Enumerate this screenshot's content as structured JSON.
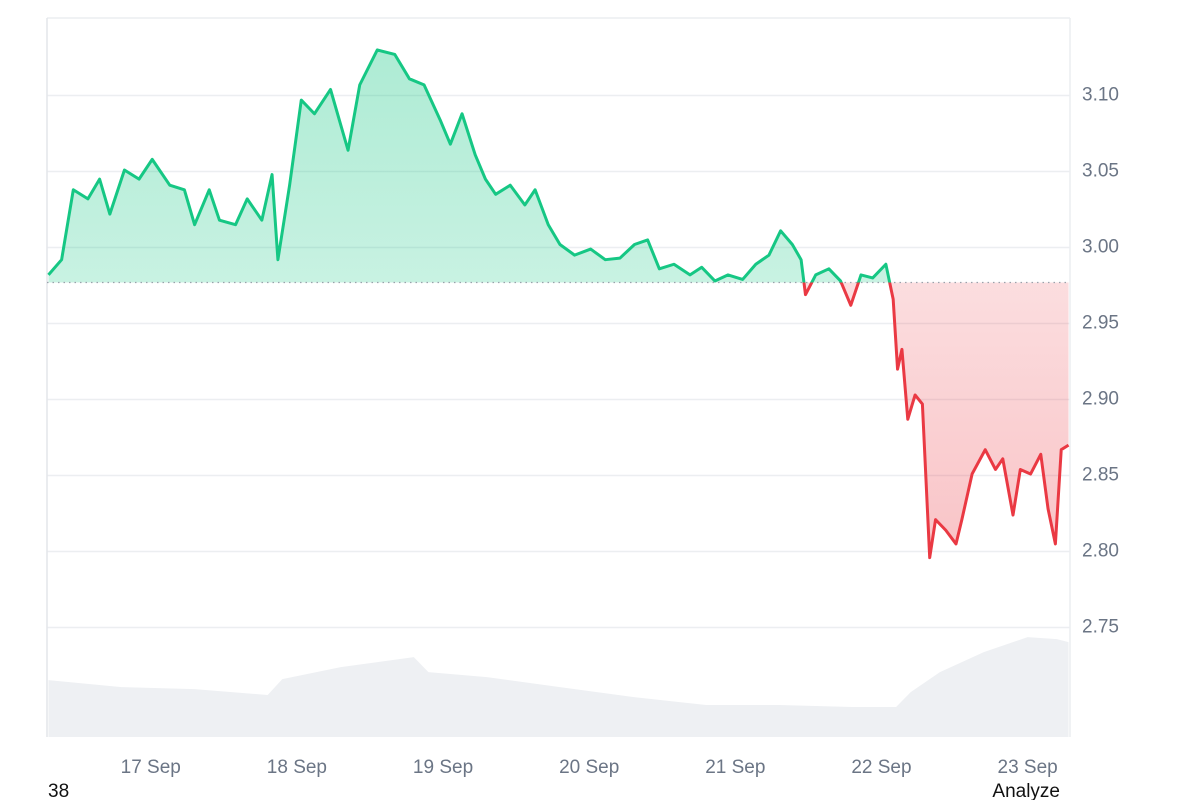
{
  "chart_data": {
    "type": "line",
    "baseline": 2.977,
    "x": [
      16.3,
      16.39,
      16.47,
      16.57,
      16.65,
      16.72,
      16.82,
      16.92,
      17.01,
      17.13,
      17.23,
      17.3,
      17.4,
      17.47,
      17.58,
      17.66,
      17.76,
      17.83,
      17.87,
      17.95,
      18.03,
      18.12,
      18.23,
      18.35,
      18.43,
      18.55,
      18.67,
      18.77,
      18.87,
      18.98,
      19.05,
      19.13,
      19.22,
      19.29,
      19.36,
      19.46,
      19.56,
      19.63,
      19.72,
      19.8,
      19.9,
      20.01,
      20.11,
      20.21,
      20.31,
      20.4,
      20.48,
      20.58,
      20.69,
      20.77,
      20.86,
      20.95,
      21.05,
      21.14,
      21.23,
      21.31,
      21.39,
      21.45,
      21.48,
      21.55,
      21.64,
      21.72,
      21.79,
      21.86,
      21.94,
      22.03,
      22.08,
      22.11,
      22.14,
      22.18,
      22.23,
      22.28,
      22.33,
      22.37,
      22.44,
      22.51,
      22.55,
      22.62,
      22.71,
      22.78,
      22.83,
      22.9,
      22.95,
      23.02,
      23.09,
      23.14,
      23.19,
      23.23,
      23.28
    ],
    "series": [
      {
        "values": [
          2.982,
          2.992,
          3.038,
          3.032,
          3.045,
          3.022,
          3.051,
          3.045,
          3.058,
          3.041,
          3.038,
          3.015,
          3.038,
          3.018,
          3.015,
          3.032,
          3.018,
          3.048,
          2.992,
          3.041,
          3.097,
          3.088,
          3.104,
          3.064,
          3.107,
          3.13,
          3.127,
          3.111,
          3.107,
          3.084,
          3.068,
          3.088,
          3.061,
          3.045,
          3.035,
          3.041,
          3.028,
          3.038,
          3.015,
          3.002,
          2.995,
          2.999,
          2.992,
          2.993,
          3.002,
          3.005,
          2.986,
          2.989,
          2.982,
          2.987,
          2.978,
          2.982,
          2.979,
          2.989,
          2.995,
          3.011,
          3.002,
          2.992,
          2.969,
          2.982,
          2.986,
          2.978,
          2.962,
          2.982,
          2.98,
          2.989,
          2.966,
          2.92,
          2.933,
          2.887,
          2.903,
          2.897,
          2.796,
          2.821,
          2.814,
          2.805,
          2.821,
          2.851,
          2.867,
          2.854,
          2.861,
          2.824,
          2.854,
          2.851,
          2.864,
          2.828,
          2.805,
          2.867,
          2.87
        ],
        "colors": {
          "up": "#16c784",
          "down": "#ea3943"
        }
      },
      {
        "axis": "y2",
        "color": "#eef0f3",
        "x": [
          16.3,
          16.8,
          17.3,
          17.8,
          17.9,
          18.3,
          18.8,
          18.9,
          19.3,
          19.8,
          20.3,
          20.8,
          21.3,
          21.8,
          22.1,
          22.2,
          22.4,
          22.7,
          23.0,
          23.2,
          23.28
        ],
        "values": [
          57,
          50,
          48,
          42,
          58,
          70,
          80,
          65,
          60,
          50,
          40,
          32,
          32,
          30,
          30,
          45,
          65,
          85,
          100,
          98,
          95
        ]
      }
    ],
    "xlim": [
      16.29,
      23.29
    ],
    "xticks": [
      {
        "value": 17,
        "label": "17 Sep"
      },
      {
        "value": 18,
        "label": "18 Sep"
      },
      {
        "value": 19,
        "label": "19 Sep"
      },
      {
        "value": 20,
        "label": "20 Sep"
      },
      {
        "value": 21,
        "label": "21 Sep"
      },
      {
        "value": 22,
        "label": "22 Sep"
      },
      {
        "value": 23,
        "label": "23 Sep"
      }
    ],
    "ylim": [
      2.678,
      3.151
    ],
    "yticks": [
      {
        "value": 3.1,
        "label": "3.10"
      },
      3.05,
      {
        "value": 3.0,
        "label": "3.00"
      },
      2.95,
      {
        "value": 2.9,
        "label": "2.90"
      },
      2.85,
      {
        "value": 2.8,
        "label": "2.80"
      },
      2.75
    ],
    "y2lim": [
      0,
      720
    ],
    "grid": true
  },
  "ui": {
    "left_label": "38",
    "action": "Analyze"
  }
}
